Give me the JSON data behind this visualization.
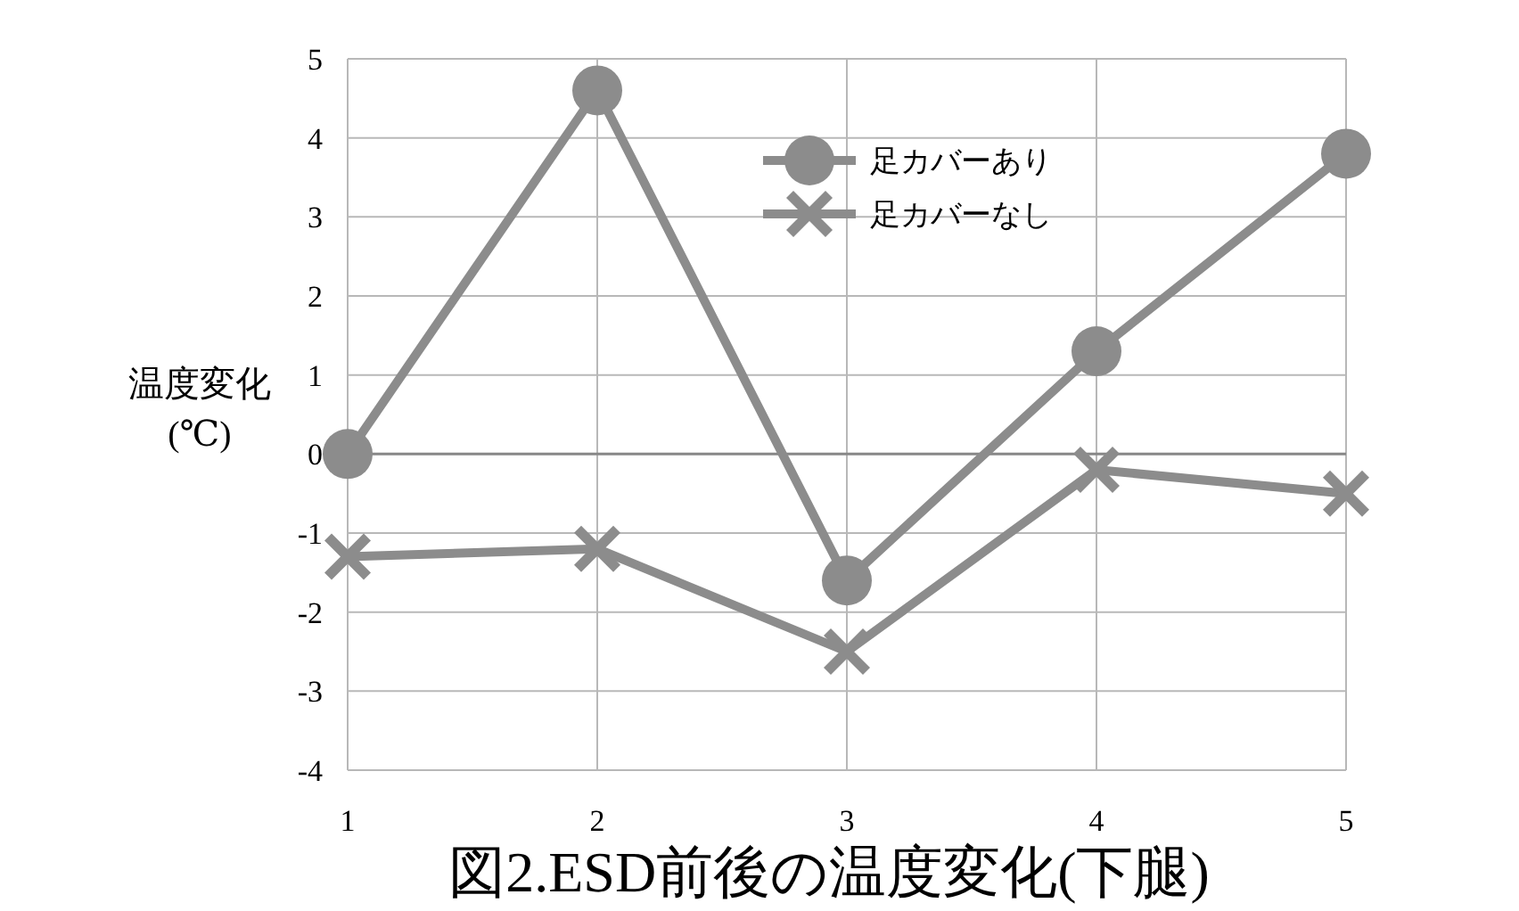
{
  "chart_data": {
    "type": "line",
    "title": "図2.ESD前後の温度変化(下腿)",
    "ylabel": "温度変化\n(℃)",
    "x": [
      1,
      2,
      3,
      4,
      5
    ],
    "xlim": [
      1,
      5
    ],
    "xticks": [
      1,
      2,
      3,
      4,
      5
    ],
    "ylim": [
      -4,
      5
    ],
    "yticks": [
      -4,
      -3,
      -2,
      -1,
      0,
      1,
      2,
      3,
      4,
      5
    ],
    "grid": true,
    "legend": "top",
    "line_style": "solid",
    "series": [
      {
        "name": "足カバーあり",
        "color": "#8c8c8c",
        "marker": "circle",
        "values": [
          0,
          4.6,
          -1.6,
          1.3,
          3.8
        ]
      },
      {
        "name": "足カバーなし",
        "color": "#8c8c8c",
        "marker": "cross",
        "values": [
          -1.3,
          -1.2,
          -2.5,
          -0.2,
          -0.5
        ]
      }
    ]
  }
}
